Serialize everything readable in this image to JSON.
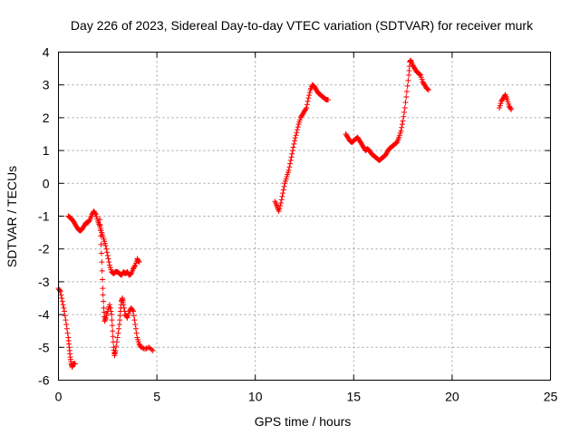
{
  "chart_data": {
    "type": "scatter",
    "title": "Day 226 of 2023, Sidereal Day-to-day VTEC variation (SDTVAR) for receiver murk",
    "xlabel": "GPS time / hours",
    "ylabel": "SDTVAR / TECUs",
    "xlim": [
      0,
      25
    ],
    "ylim": [
      -6,
      4
    ],
    "xticks": [
      0,
      5,
      10,
      15,
      20,
      25
    ],
    "yticks": [
      -6,
      -5,
      -4,
      -3,
      -2,
      -1,
      0,
      1,
      2,
      3,
      4
    ],
    "grid": true,
    "marker": "+",
    "color": "#ff0000",
    "series": [
      {
        "name": "SDTVAR",
        "segments": [
          [
            [
              0.0,
              -3.2
            ],
            [
              0.1,
              -3.3
            ],
            [
              0.2,
              -3.6
            ],
            [
              0.3,
              -3.9
            ],
            [
              0.4,
              -4.3
            ],
            [
              0.5,
              -4.7
            ],
            [
              0.55,
              -5.0
            ],
            [
              0.6,
              -5.3
            ],
            [
              0.65,
              -5.5
            ],
            [
              0.7,
              -5.6
            ],
            [
              0.75,
              -5.5
            ],
            [
              0.85,
              -5.5
            ]
          ],
          [
            [
              0.5,
              -1.0
            ],
            [
              0.6,
              -1.05
            ],
            [
              0.7,
              -1.1
            ],
            [
              0.8,
              -1.2
            ],
            [
              0.9,
              -1.3
            ],
            [
              1.0,
              -1.4
            ],
            [
              1.1,
              -1.45
            ],
            [
              1.2,
              -1.4
            ],
            [
              1.3,
              -1.3
            ],
            [
              1.4,
              -1.2
            ],
            [
              1.5,
              -1.2
            ],
            [
              1.6,
              -1.1
            ],
            [
              1.7,
              -0.95
            ],
            [
              1.8,
              -0.85
            ],
            [
              1.9,
              -0.95
            ],
            [
              2.0,
              -1.15
            ],
            [
              2.1,
              -1.3
            ],
            [
              2.2,
              -1.5
            ],
            [
              2.3,
              -1.7
            ],
            [
              2.4,
              -1.9
            ],
            [
              2.5,
              -2.2
            ],
            [
              2.6,
              -2.5
            ],
            [
              2.7,
              -2.7
            ],
            [
              2.8,
              -2.75
            ],
            [
              2.9,
              -2.7
            ],
            [
              3.0,
              -2.7
            ],
            [
              3.1,
              -2.75
            ],
            [
              3.2,
              -2.8
            ],
            [
              3.3,
              -2.7
            ],
            [
              3.4,
              -2.75
            ],
            [
              3.5,
              -2.7
            ],
            [
              3.6,
              -2.8
            ],
            [
              3.7,
              -2.75
            ],
            [
              3.8,
              -2.6
            ],
            [
              3.9,
              -2.5
            ],
            [
              4.0,
              -2.3
            ],
            [
              4.1,
              -2.4
            ]
          ],
          [
            [
              2.1,
              -1.1
            ],
            [
              2.15,
              -1.6
            ],
            [
              2.2,
              -2.4
            ],
            [
              2.25,
              -3.2
            ],
            [
              2.3,
              -3.8
            ],
            [
              2.35,
              -4.2
            ],
            [
              2.4,
              -4.1
            ],
            [
              2.5,
              -3.9
            ],
            [
              2.6,
              -3.7
            ],
            [
              2.7,
              -4.0
            ],
            [
              2.75,
              -4.5
            ],
            [
              2.8,
              -5.0
            ],
            [
              2.85,
              -5.25
            ],
            [
              2.9,
              -5.1
            ],
            [
              3.0,
              -4.7
            ],
            [
              3.1,
              -4.3
            ],
            [
              3.15,
              -3.9
            ],
            [
              3.2,
              -3.6
            ],
            [
              3.25,
              -3.5
            ],
            [
              3.3,
              -3.7
            ],
            [
              3.4,
              -4.0
            ],
            [
              3.5,
              -4.1
            ],
            [
              3.6,
              -3.9
            ],
            [
              3.7,
              -3.8
            ],
            [
              3.8,
              -3.9
            ],
            [
              3.9,
              -4.3
            ],
            [
              4.0,
              -4.7
            ],
            [
              4.1,
              -4.9
            ],
            [
              4.2,
              -5.0
            ],
            [
              4.4,
              -5.05
            ],
            [
              4.6,
              -5.0
            ],
            [
              4.8,
              -5.1
            ]
          ],
          [
            [
              11.0,
              -0.55
            ],
            [
              11.1,
              -0.7
            ],
            [
              11.2,
              -0.85
            ],
            [
              11.3,
              -0.6
            ],
            [
              11.4,
              -0.3
            ],
            [
              11.5,
              0.0
            ],
            [
              11.6,
              0.2
            ],
            [
              11.7,
              0.4
            ],
            [
              11.8,
              0.7
            ],
            [
              11.9,
              1.0
            ],
            [
              12.0,
              1.3
            ],
            [
              12.1,
              1.55
            ],
            [
              12.2,
              1.8
            ],
            [
              12.3,
              2.0
            ],
            [
              12.4,
              2.1
            ],
            [
              12.5,
              2.2
            ],
            [
              12.6,
              2.3
            ],
            [
              12.7,
              2.6
            ],
            [
              12.8,
              2.85
            ],
            [
              12.9,
              3.0
            ],
            [
              13.0,
              2.95
            ],
            [
              13.1,
              2.85
            ],
            [
              13.2,
              2.75
            ],
            [
              13.3,
              2.7
            ],
            [
              13.4,
              2.65
            ],
            [
              13.5,
              2.6
            ],
            [
              13.6,
              2.55
            ],
            [
              13.7,
              2.55
            ]
          ],
          [
            [
              14.6,
              1.5
            ],
            [
              14.7,
              1.4
            ],
            [
              14.8,
              1.3
            ],
            [
              14.9,
              1.25
            ],
            [
              15.0,
              1.3
            ],
            [
              15.1,
              1.35
            ],
            [
              15.2,
              1.4
            ],
            [
              15.3,
              1.3
            ],
            [
              15.4,
              1.2
            ],
            [
              15.5,
              1.1
            ],
            [
              15.6,
              1.0
            ],
            [
              15.7,
              1.05
            ],
            [
              15.8,
              1.0
            ],
            [
              15.9,
              0.9
            ],
            [
              16.0,
              0.85
            ],
            [
              16.1,
              0.8
            ],
            [
              16.2,
              0.75
            ],
            [
              16.3,
              0.7
            ],
            [
              16.4,
              0.75
            ],
            [
              16.5,
              0.8
            ],
            [
              16.6,
              0.85
            ],
            [
              16.7,
              0.95
            ],
            [
              16.8,
              1.05
            ],
            [
              16.9,
              1.1
            ],
            [
              17.0,
              1.15
            ],
            [
              17.1,
              1.2
            ],
            [
              17.2,
              1.25
            ],
            [
              17.3,
              1.4
            ],
            [
              17.4,
              1.6
            ],
            [
              17.5,
              1.9
            ],
            [
              17.6,
              2.3
            ],
            [
              17.7,
              2.8
            ],
            [
              17.8,
              3.3
            ],
            [
              17.85,
              3.7
            ],
            [
              17.9,
              3.75
            ],
            [
              18.0,
              3.6
            ],
            [
              18.1,
              3.5
            ],
            [
              18.2,
              3.4
            ],
            [
              18.3,
              3.35
            ],
            [
              18.4,
              3.3
            ],
            [
              18.5,
              3.1
            ],
            [
              18.6,
              3.0
            ],
            [
              18.7,
              2.9
            ],
            [
              18.8,
              2.85
            ]
          ],
          [
            [
              22.4,
              2.3
            ],
            [
              22.5,
              2.5
            ],
            [
              22.6,
              2.6
            ],
            [
              22.7,
              2.7
            ],
            [
              22.8,
              2.55
            ],
            [
              22.9,
              2.35
            ],
            [
              23.0,
              2.25
            ]
          ]
        ]
      }
    ]
  }
}
